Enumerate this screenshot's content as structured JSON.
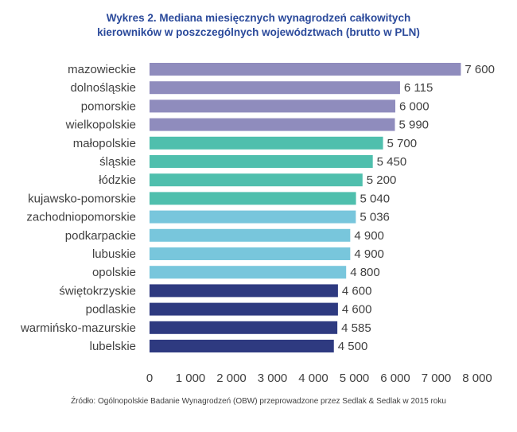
{
  "chart_data": {
    "type": "bar",
    "orientation": "horizontal",
    "title_line1": "Wykres 2. Mediana miesięcznych wynagrodzeń całkowitych",
    "title_line2": "kierowników w poszczególnych województwach (brutto w PLN)",
    "categories": [
      "mazowieckie",
      "dolnośląskie",
      "pomorskie",
      "wielkopolskie",
      "małopolskie",
      "śląskie",
      "łódzkie",
      "kujawsko-pomorskie",
      "zachodniopomorskie",
      "podkarpackie",
      "lubuskie",
      "opolskie",
      "świętokrzyskie",
      "podlaskie",
      "warmińsko-mazurskie",
      "lubelskie"
    ],
    "values": [
      7600,
      6115,
      6000,
      5990,
      5700,
      5450,
      5200,
      5040,
      5036,
      4900,
      4900,
      4800,
      4600,
      4600,
      4585,
      4500
    ],
    "value_labels": [
      "7 600",
      "6 115",
      "6 000",
      "5 990",
      "5 700",
      "5 450",
      "5 200",
      "5 040",
      "5 036",
      "4 900",
      "4 900",
      "4 800",
      "4 600",
      "4 600",
      "4 585",
      "4 500"
    ],
    "bar_colors": [
      "#8f8cbd",
      "#8f8cbd",
      "#8f8cbd",
      "#8f8cbd",
      "#4fbfad",
      "#4fbfad",
      "#4fbfad",
      "#4fbfad",
      "#78c6dc",
      "#78c6dc",
      "#78c6dc",
      "#78c6dc",
      "#2e3a80",
      "#2e3a80",
      "#2e3a80",
      "#2e3a80"
    ],
    "xlim": [
      0,
      8000
    ],
    "x_ticks": [
      0,
      1000,
      2000,
      3000,
      4000,
      5000,
      6000,
      7000,
      8000
    ],
    "x_tick_labels": [
      "0",
      "1 000",
      "2 000",
      "3 000",
      "4 000",
      "5 000",
      "6 000",
      "7 000",
      "8 000"
    ],
    "grid": false,
    "legend": "none"
  },
  "source": "Źródło: Ogólnopolskie Badanie Wynagrodzeń (OBW) przeprowadzone przez Sedlak & Sedlak w 2015 roku"
}
